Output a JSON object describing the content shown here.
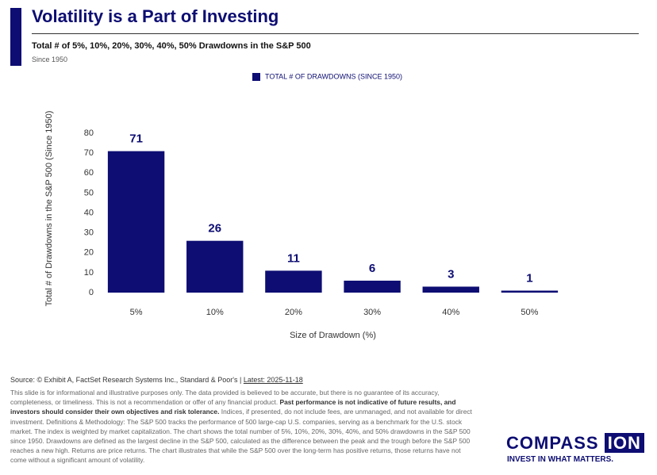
{
  "header": {
    "title": "Volatility is a Part of Investing",
    "subtitle": "Total # of 5%, 10%, 20%, 30%, 40%, 50% Drawdowns in the S&P 500",
    "note": "Since 1950"
  },
  "chart_data": {
    "type": "bar",
    "x_label": "Size of Drawdown (%)",
    "y_label": "Total # of Drawdowns in the S&P 500 (Since 1950)",
    "categories": [
      "5%",
      "10%",
      "20%",
      "30%",
      "40%",
      "50%"
    ],
    "series": [
      {
        "name": "TOTAL # OF DRAWDOWNS (SINCE 1950)",
        "color": "#0d0d73",
        "values": [
          71,
          26,
          11,
          6,
          3,
          1
        ]
      }
    ],
    "ylim": [
      0,
      80
    ],
    "yticks": [
      0,
      10,
      20,
      30,
      40,
      50,
      60,
      70,
      80
    ],
    "grid": false,
    "data_labels": true,
    "legend": "top"
  },
  "footer": {
    "source": "Source: © Exhibit A, FactSet Research Systems Inc., Standard & Poor's |",
    "latest": "Latest: 2025-11-18",
    "disclaimer_1": "This slide is for informational and illustrative purposes only. The data provided is believed to be accurate, but there is no guarantee of its accuracy, completeness, or timeliness. This is not a recommendation or offer of any financial product.",
    "disclaimer_bold": "Past performance is not indicative of future results, and investors should consider their own objectives and risk tolerance.",
    "disclaimer_2": "Indices, if presented, do not include fees, are unmanaged, and not available for direct investment. Definitions & Methodology: The S&P 500 tracks the performance of 500 large-cap U.S. companies, serving as a benchmark for the U.S. stock market. The index is weighted by market capitalization. The chart shows the total number of 5%, 10%, 20%, 30%, 40%, and 50% drawdowns in the S&P 500 since 1950. Drawdowns are defined as the largest decline in the S&P 500, calculated as the difference between the peak and the trough before the S&P 500 reaches a new high. Returns are price returns. The chart illustrates that while the S&P 500 over the long-term has positive returns, those returns have not come without a significant amount of volatility."
  },
  "logo": {
    "name": "COMPASS",
    "badge": "ION",
    "tagline": "INVEST IN WHAT MATTERS."
  }
}
